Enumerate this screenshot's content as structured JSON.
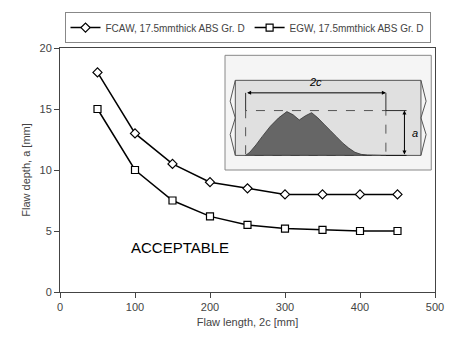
{
  "chart_data": {
    "type": "line",
    "x": [
      50,
      100,
      150,
      200,
      250,
      300,
      350,
      400,
      450
    ],
    "series": [
      {
        "name": "FCAW, 17.5mmthick ABS Gr. D",
        "color": "#000000",
        "marker": "diamond",
        "values": [
          18.0,
          13.0,
          10.5,
          9.0,
          8.5,
          8.0,
          8.0,
          8.0,
          8.0
        ]
      },
      {
        "name": "EGW, 17.5mmthick ABS Gr. D",
        "color": "#000000",
        "marker": "square",
        "values": [
          15.0,
          10.0,
          7.5,
          6.2,
          5.5,
          5.2,
          5.1,
          5.0,
          5.0
        ]
      }
    ],
    "xlabel": "Flaw length, 2c [mm]",
    "ylabel": "Flaw depth, a [mm]",
    "xlim": [
      0,
      500
    ],
    "ylim": [
      0.0,
      20.0
    ],
    "xticks": [
      0,
      100,
      200,
      300,
      400,
      500
    ],
    "yticks": [
      0,
      5,
      10,
      15,
      20
    ],
    "annotations": [
      "ACCEPTABLE",
      "2c",
      "a"
    ],
    "grid": false,
    "legend": "top"
  }
}
